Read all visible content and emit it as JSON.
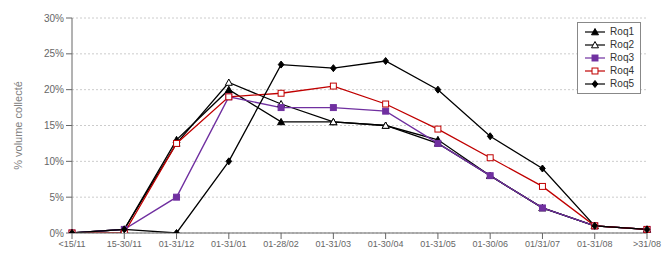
{
  "chart_data": {
    "type": "line",
    "ylabel": "% volume collecté",
    "categories": [
      "<15/11",
      "15-30/11",
      "01-31/12",
      "01-31/01",
      "01-28/02",
      "01-31/03",
      "01-30/04",
      "01-31/05",
      "01-30/06",
      "01/31/07",
      "01-31/08",
      ">31/08"
    ],
    "series": [
      {
        "name": "Roq1",
        "color": "#000000",
        "marker": "triangle",
        "values": [
          0,
          0.5,
          13,
          20,
          15.5,
          15.5,
          15,
          13,
          8,
          3.5,
          1,
          0.5
        ]
      },
      {
        "name": "Roq2",
        "color": "#000000",
        "marker": "triangle_open",
        "values": [
          0,
          0.5,
          12.5,
          21,
          18,
          15.5,
          15,
          12.5,
          8,
          3.5,
          1,
          0.5
        ]
      },
      {
        "name": "Roq3",
        "color": "#7030a0",
        "marker": "square",
        "values": [
          0,
          0.5,
          5,
          19,
          17.5,
          17.5,
          17,
          12.5,
          8,
          3.5,
          1,
          0.5
        ]
      },
      {
        "name": "Roq4",
        "color": "#c00000",
        "marker": "square_open",
        "values": [
          0,
          0,
          12.5,
          19,
          19.5,
          20.5,
          18,
          14.5,
          10.5,
          6.5,
          1,
          0.5
        ]
      },
      {
        "name": "Roq5",
        "color": "#000000",
        "marker": "diamond",
        "values": [
          0,
          0.5,
          0,
          10,
          23.5,
          23,
          24,
          20,
          13.5,
          9,
          1,
          0.5
        ]
      }
    ],
    "ylim": [
      0,
      30
    ],
    "yticks": [
      {
        "value": 0,
        "label": "0%"
      },
      {
        "value": 5,
        "label": "5%"
      },
      {
        "value": 10,
        "label": "10%"
      },
      {
        "value": 15,
        "label": "15%"
      },
      {
        "value": 20,
        "label": "20%"
      },
      {
        "value": 25,
        "label": "25%"
      },
      {
        "value": 30,
        "label": "30%"
      }
    ],
    "grid": true,
    "legend": "upper right"
  }
}
